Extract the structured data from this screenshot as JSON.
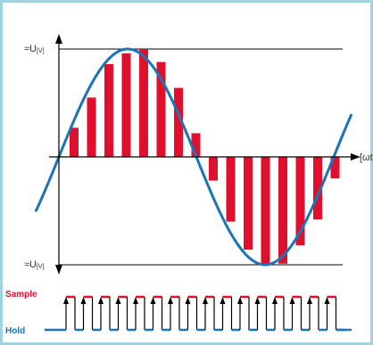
{
  "diagram": {
    "labels": {
      "u_upper_main": "≈U",
      "u_upper_sub": "[V]",
      "u_lower_main": "≈U",
      "u_lower_sub": "[V]",
      "x_axis": "[ωt]",
      "sample": "Sample",
      "hold": "Hold"
    },
    "colors": {
      "frame": "#9fd3e0",
      "sine": "#1a74b5",
      "bars": "#e0102c",
      "axis": "#000000",
      "sample": "#e0102c",
      "hold": "#1a74b5"
    },
    "sampled_levels": [
      0.27,
      0.55,
      0.86,
      0.96,
      1.0,
      0.88,
      0.64,
      0.22,
      -0.22,
      -0.6,
      -0.86,
      -1.0,
      -0.99,
      -0.82,
      -0.58,
      -0.2
    ],
    "sample_pulse_count": 16
  }
}
